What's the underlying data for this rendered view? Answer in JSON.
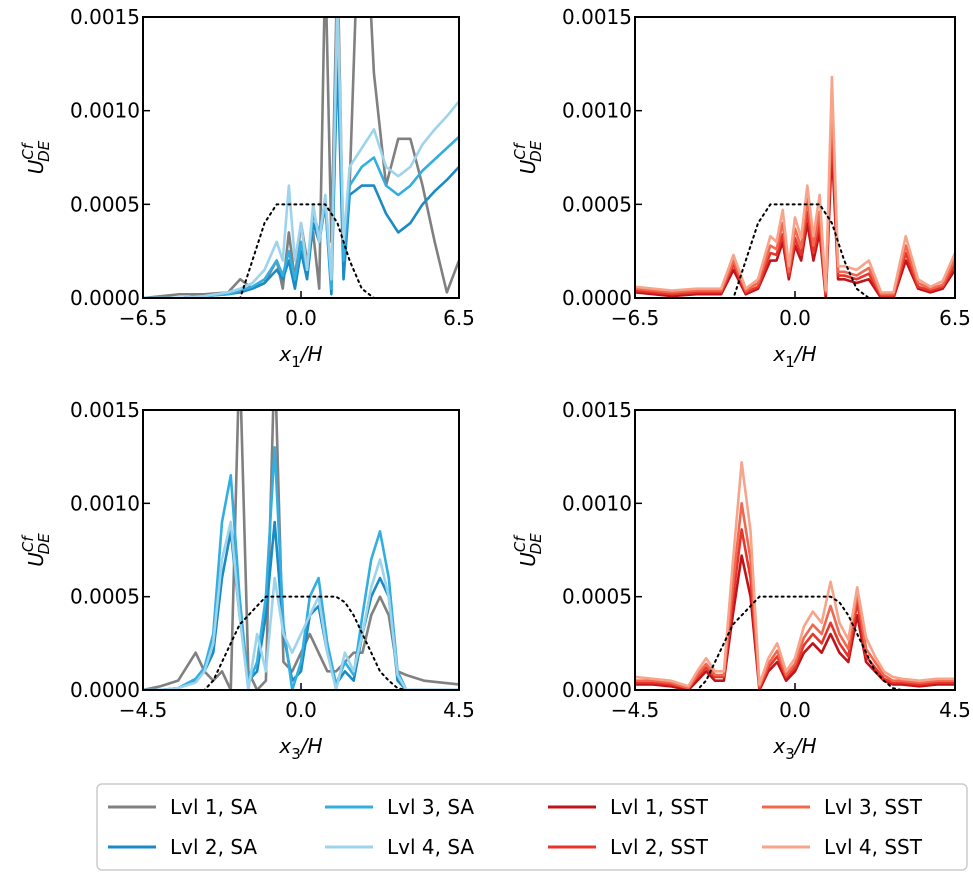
{
  "chart_data": [
    {
      "type": "line",
      "ylabel": {
        "main": "U",
        "sup": "Cf",
        "sub": "DE"
      },
      "xlabel": {
        "main": "x",
        "sub": "1",
        "rest": "/H"
      },
      "xlim": [
        -6.5,
        6.5
      ],
      "ylim": [
        0,
        0.0015
      ],
      "xticks": [
        {
          "value": -6.5,
          "label": "−6.5"
        },
        {
          "value": 0,
          "label": "0.0"
        },
        6.5
      ],
      "yticks": [
        {
          "value": 0,
          "label": "0.0000"
        },
        {
          "value": 0.0005,
          "label": "0.0005"
        },
        {
          "value": 0.001,
          "label": "0.0010"
        },
        {
          "value": 0.0015,
          "label": "0.0015"
        }
      ],
      "x": [
        -6.5,
        -5,
        -4,
        -3,
        -2.5,
        -2,
        -1.5,
        -1,
        -0.75,
        -0.5,
        -0.25,
        0,
        0.25,
        0.5,
        0.75,
        1,
        1.25,
        1.5,
        1.75,
        2,
        2.5,
        3,
        3.5,
        4,
        4.5,
        5,
        5.5,
        6,
        6.5
      ],
      "series": [
        {
          "name": "Lvl 1, SA",
          "color": "#808080",
          "values": [
            0,
            2e-05,
            2e-05,
            3e-05,
            0.0001,
            5e-05,
            8e-05,
            0.0002,
            5e-05,
            0.00035,
            0.0001,
            0.0004,
            0.0002,
            0.00035,
            5e-05,
            0.0018,
            0.0003,
            0.0018,
            0.0002,
            0.0006,
            0.0025,
            0.0012,
            0.0006,
            0.00085,
            0.00085,
            0.0006,
            0.0003,
            3e-05,
            0.0002
          ]
        },
        {
          "name": "Lvl 2, SA",
          "color": "#1a8bc4",
          "values": [
            0,
            0,
            1e-05,
            2e-05,
            3e-05,
            5e-05,
            8e-05,
            0.00015,
            0.0001,
            0.0002,
            5e-05,
            0.00025,
            0.0001,
            0.0004,
            0.0003,
            0.0005,
            2e-05,
            0.0013,
            0.0001,
            0.00055,
            0.0006,
            0.0006,
            0.00045,
            0.00035,
            0.0004,
            0.0005,
            0.00057,
            0.00063,
            0.0007
          ]
        },
        {
          "name": "Lvl 3, SA",
          "color": "#33aee0",
          "values": [
            0,
            0,
            1e-05,
            2e-05,
            4e-05,
            6e-05,
            0.0001,
            0.0002,
            0.00012,
            0.00025,
            0.0001,
            0.0003,
            0.00015,
            0.00045,
            0.00035,
            0.0005,
            5e-05,
            0.0016,
            0.0002,
            0.0006,
            0.0007,
            0.00075,
            0.0006,
            0.00055,
            0.0006,
            0.00068,
            0.00074,
            0.0008,
            0.00086
          ]
        },
        {
          "name": "Lvl 4, SA",
          "color": "#9dd4ec",
          "values": [
            0,
            0,
            1e-05,
            3e-05,
            5e-05,
            8e-05,
            0.00015,
            0.0003,
            0.0002,
            0.0006,
            0.0002,
            0.0004,
            0.00015,
            0.0005,
            0.0003,
            0.00055,
            0.0001,
            0.0016,
            0.0003,
            0.0007,
            0.0008,
            0.0009,
            0.0007,
            0.00065,
            0.0007,
            0.00082,
            0.0009,
            0.00097,
            0.00105
          ]
        },
        {
          "color": "#000000",
          "linestyle": "dotted",
          "values": [
            0,
            0,
            0,
            0,
            0,
            0.0002,
            0.0004,
            0.0005,
            0.0005,
            0.0005,
            0.0005,
            0.0005,
            0.0005,
            0.0005,
            0.0005,
            0.0005,
            0.00045,
            0.0004,
            0.0003,
            0.0002,
            5e-05,
            0,
            0,
            0,
            0,
            0,
            0,
            0,
            0
          ]
        }
      ]
    },
    {
      "type": "line",
      "ylabel": {
        "main": "U",
        "sup": "Cf",
        "sub": "DE"
      },
      "xlabel": {
        "main": "x",
        "sub": "1",
        "rest": "/H"
      },
      "xlim": [
        -6.5,
        6.5
      ],
      "ylim": [
        0,
        0.0015
      ],
      "xticks": [
        {
          "value": -6.5,
          "label": "−6.5"
        },
        {
          "value": 0,
          "label": "0.0"
        },
        6.5
      ],
      "yticks": [
        {
          "value": 0,
          "label": "0.0000"
        },
        {
          "value": 0.0005,
          "label": "0.0005"
        },
        {
          "value": 0.001,
          "label": "0.0010"
        },
        {
          "value": 0.0015,
          "label": "0.0015"
        }
      ],
      "x": [
        -6.5,
        -5,
        -4,
        -3,
        -2.5,
        -2,
        -1.5,
        -1,
        -0.75,
        -0.5,
        -0.25,
        0,
        0.25,
        0.5,
        0.75,
        1,
        1.25,
        1.5,
        1.75,
        2,
        2.5,
        3,
        3.5,
        4,
        4.5,
        5,
        5.5,
        6,
        6.5
      ],
      "series": [
        {
          "name": "Lvl 1, SST",
          "color": "#c0141b",
          "values": [
            3e-05,
            1e-05,
            2e-05,
            2e-05,
            0.00015,
            2e-05,
            5e-05,
            0.0002,
            0.0002,
            0.0003,
            0.0001,
            0.00028,
            0.0002,
            0.0004,
            0.0002,
            0.00035,
            0,
            0.0008,
            0.0001,
            0.0001,
            8e-05,
            0.0001,
            0,
            0,
            0.0002,
            5e-05,
            3e-05,
            5e-05,
            0.00015
          ]
        },
        {
          "name": "Lvl 2, SST",
          "color": "#e8352b",
          "values": [
            4e-05,
            2e-05,
            3e-05,
            3e-05,
            0.00018,
            3e-05,
            6e-05,
            0.00024,
            0.00023,
            0.00034,
            0.00012,
            0.00032,
            0.00023,
            0.00046,
            0.00024,
            0.0004,
            2e-05,
            0.00092,
            0.00012,
            0.00012,
            0.0001,
            0.00013,
            1e-05,
            1e-05,
            0.00024,
            6e-05,
            4e-05,
            6e-05,
            0.00018
          ]
        },
        {
          "name": "Lvl 3, SST",
          "color": "#f2684f",
          "values": [
            5e-05,
            3e-05,
            4e-05,
            4e-05,
            0.0002,
            4e-05,
            8e-05,
            0.00028,
            0.00026,
            0.0004,
            0.00014,
            0.00037,
            0.00027,
            0.00053,
            0.00028,
            0.00046,
            3e-05,
            0.00105,
            0.00014,
            0.00014,
            0.00012,
            0.00016,
            2e-05,
            2e-05,
            0.00028,
            8e-05,
            5e-05,
            7e-05,
            0.00021
          ]
        },
        {
          "name": "Lvl 4, SST",
          "color": "#f7a48a",
          "values": [
            6e-05,
            4e-05,
            5e-05,
            5e-05,
            0.00023,
            5e-05,
            0.0001,
            0.00033,
            0.0003,
            0.00047,
            0.00017,
            0.00043,
            0.00032,
            0.0006,
            0.00033,
            0.00055,
            4e-05,
            0.00118,
            0.00017,
            0.00017,
            0.00015,
            0.0002,
            3e-05,
            3e-05,
            0.00033,
            0.0001,
            6e-05,
            9e-05,
            0.00024
          ]
        },
        {
          "color": "#000000",
          "linestyle": "dotted",
          "values": [
            0,
            0,
            0,
            0,
            0,
            0.0002,
            0.0004,
            0.0005,
            0.0005,
            0.0005,
            0.0005,
            0.0005,
            0.0005,
            0.0005,
            0.0005,
            0.0005,
            0.00045,
            0.0004,
            0.0003,
            0.0002,
            5e-05,
            0,
            0,
            0,
            0,
            0,
            0,
            0,
            0
          ]
        }
      ]
    },
    {
      "type": "line",
      "ylabel": {
        "main": "U",
        "sup": "Cf",
        "sub": "DE"
      },
      "xlabel": {
        "main": "x",
        "sub": "3",
        "rest": "/H"
      },
      "xlim": [
        -4.5,
        4.5
      ],
      "ylim": [
        0,
        0.0015
      ],
      "xticks": [
        {
          "value": -4.5,
          "label": "−4.5"
        },
        {
          "value": 0,
          "label": "0.0"
        },
        4.5
      ],
      "yticks": [
        {
          "value": 0,
          "label": "0.0000"
        },
        {
          "value": 0.0005,
          "label": "0.0005"
        },
        {
          "value": 0.001,
          "label": "0.0010"
        },
        {
          "value": 0.0015,
          "label": "0.0015"
        }
      ],
      "x": [
        -4.5,
        -4,
        -3.5,
        -3,
        -2.75,
        -2.5,
        -2.25,
        -2,
        -1.75,
        -1.5,
        -1.25,
        -1,
        -0.75,
        -0.5,
        -0.25,
        0,
        0.25,
        0.5,
        0.75,
        1,
        1.25,
        1.5,
        1.75,
        2,
        2.25,
        2.5,
        2.75,
        3,
        3.5,
        4,
        4.5
      ],
      "series": [
        {
          "color": "#808080",
          "values": [
            0,
            2e-05,
            5e-05,
            0.0002,
            0.0001,
            5e-05,
            0.0001,
            0,
            0.0018,
            0.0001,
            0,
            5e-05,
            0.0018,
            0.00015,
            0.0001,
            0.0002,
            0.0003,
            0.0002,
            0.0001,
            0.0001,
            0.00015,
            0.0002,
            0.0002,
            0.0004,
            0.0005,
            0.0004,
            0.0001,
            8e-05,
            5e-05,
            4e-05,
            3e-05
          ]
        },
        {
          "color": "#1a8bc4",
          "values": [
            0,
            0,
            1e-05,
            5e-05,
            0.0001,
            0.0002,
            0.0006,
            0.00085,
            0.0004,
            5e-05,
            0.0001,
            0.0004,
            0.0009,
            0.0003,
            5e-05,
            0.0001,
            0.0004,
            0.00045,
            0.0002,
            3e-05,
            0.0001,
            5e-05,
            0.0003,
            0.0005,
            0.0006,
            0.0005,
            5e-05,
            0,
            0,
            0,
            0
          ]
        },
        {
          "color": "#33aee0",
          "values": [
            0,
            0,
            1e-05,
            6e-05,
            0.00012,
            0.0003,
            0.0009,
            0.00115,
            0.0005,
            3e-05,
            0.00015,
            0.0005,
            0.0013,
            0.00035,
            0,
            0.00015,
            0.0005,
            0.0006,
            0.00025,
            3e-05,
            0.00015,
            8e-05,
            0.0004,
            0.0007,
            0.00085,
            0.0006,
            0.0001,
            0,
            0,
            0,
            0
          ]
        },
        {
          "color": "#9dd4ec",
          "values": [
            0,
            0,
            1e-05,
            4e-05,
            0.0001,
            0.00025,
            0.0007,
            0.0009,
            0.0004,
            0,
            0.0003,
            0.0001,
            0.0006,
            0.0003,
            0.0002,
            0.0003,
            0.0004,
            0.0005,
            0.0002,
            0,
            0.0002,
            0.0001,
            0.0003,
            0.00055,
            0.0007,
            0.0005,
            8e-05,
            0,
            0,
            0,
            0
          ]
        },
        {
          "color": "#000000",
          "linestyle": "dotted",
          "values": [
            0,
            0,
            0,
            0,
            0,
            5e-05,
            0.00015,
            0.00025,
            0.00035,
            0.0004,
            0.00045,
            0.0005,
            0.0005,
            0.0005,
            0.0005,
            0.0005,
            0.0005,
            0.0005,
            0.0005,
            0.0005,
            0.00047,
            0.0004,
            0.0003,
            0.0002,
            0.0001,
            5e-05,
            1e-05,
            0,
            0,
            0,
            0
          ]
        }
      ]
    },
    {
      "type": "line",
      "ylabel": {
        "main": "U",
        "sup": "Cf",
        "sub": "DE"
      },
      "xlabel": {
        "main": "x",
        "sub": "3",
        "rest": "/H"
      },
      "xlim": [
        -4.5,
        4.5
      ],
      "ylim": [
        0,
        0.0015
      ],
      "xticks": [
        {
          "value": -4.5,
          "label": "−4.5"
        },
        {
          "value": 0,
          "label": "0.0"
        },
        4.5
      ],
      "yticks": [
        {
          "value": 0,
          "label": "0.0000"
        },
        {
          "value": 0.0005,
          "label": "0.0005"
        },
        {
          "value": 0.001,
          "label": "0.0010"
        },
        {
          "value": 0.0015,
          "label": "0.0015"
        }
      ],
      "x": [
        -4.5,
        -4,
        -3.5,
        -3,
        -2.75,
        -2.5,
        -2.25,
        -2,
        -1.75,
        -1.5,
        -1.25,
        -1,
        -0.75,
        -0.5,
        -0.25,
        0,
        0.25,
        0.5,
        0.75,
        1,
        1.25,
        1.5,
        1.75,
        2,
        2.25,
        2.5,
        2.75,
        3,
        3.5,
        4,
        4.5
      ],
      "series": [
        {
          "color": "#c0141b",
          "values": [
            3e-05,
            3e-05,
            2e-05,
            0,
            5e-05,
            0.0001,
            5e-05,
            5e-05,
            0.0004,
            0.00072,
            0.0005,
            0,
            0.0001,
            0.00015,
            5e-05,
            0.0001,
            0.0002,
            0.00025,
            0.0002,
            0.0003,
            0.0002,
            0.00015,
            0.0004,
            0.00015,
            0.0001,
            5e-05,
            3e-05,
            3e-05,
            2e-05,
            3e-05,
            3e-05
          ]
        },
        {
          "color": "#e8352b",
          "values": [
            4e-05,
            4e-05,
            3e-05,
            1e-05,
            7e-05,
            0.00012,
            7e-05,
            7e-05,
            0.00048,
            0.00086,
            0.0006,
            1e-05,
            0.00012,
            0.00018,
            7e-05,
            0.00012,
            0.00024,
            0.0003,
            0.00025,
            0.00036,
            0.00025,
            0.00018,
            0.00047,
            0.00018,
            0.00012,
            6e-05,
            4e-05,
            4e-05,
            3e-05,
            4e-05,
            4e-05
          ]
        },
        {
          "color": "#f2684f",
          "values": [
            5e-05,
            5e-05,
            4e-05,
            1e-05,
            8e-05,
            0.00014,
            8e-05,
            8e-05,
            0.00056,
            0.001,
            0.0007,
            2e-05,
            0.00014,
            0.00021,
            8e-05,
            0.00014,
            0.00028,
            0.00035,
            0.0003,
            0.00045,
            0.0003,
            0.00022,
            0.00052,
            0.00022,
            0.00015,
            8e-05,
            5e-05,
            5e-05,
            4e-05,
            5e-05,
            5e-05
          ]
        },
        {
          "color": "#f7a48a",
          "values": [
            7e-05,
            6e-05,
            5e-05,
            2e-05,
            0.0001,
            0.00017,
            0.0001,
            0.0001,
            0.00068,
            0.00122,
            0.00085,
            3e-05,
            0.00017,
            0.00025,
            0.0001,
            0.00017,
            0.00034,
            0.00042,
            0.00036,
            0.00058,
            0.00036,
            0.00027,
            0.00055,
            0.00028,
            0.00018,
            0.0001,
            7e-05,
            6e-05,
            5e-05,
            6e-05,
            6e-05
          ]
        },
        {
          "color": "#000000",
          "linestyle": "dotted",
          "values": [
            0,
            0,
            0,
            0,
            0,
            5e-05,
            0.00015,
            0.00025,
            0.00035,
            0.0004,
            0.00045,
            0.0005,
            0.0005,
            0.0005,
            0.0005,
            0.0005,
            0.0005,
            0.0005,
            0.0005,
            0.0005,
            0.00047,
            0.0004,
            0.0003,
            0.0002,
            0.0001,
            5e-05,
            1e-05,
            0,
            0,
            0,
            0
          ]
        }
      ]
    }
  ]
}
